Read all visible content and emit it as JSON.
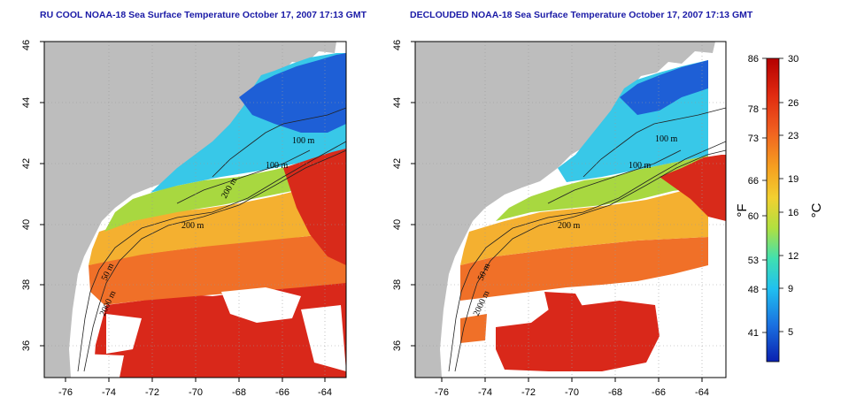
{
  "titles": {
    "left": "RU COOL NOAA-18 Sea Surface Temperature October 17, 2007 17:13 GMT",
    "right": "DECLOUDED NOAA-18 Sea Surface Temperature October 17, 2007 17:13 GMT"
  },
  "axes": {
    "x_ticks": [
      "-76",
      "-74",
      "-72",
      "-70",
      "-68",
      "-66",
      "-64"
    ],
    "y_ticks": [
      "36",
      "38",
      "40",
      "42",
      "44",
      "46"
    ]
  },
  "contours": [
    "100 m",
    "100 m",
    "200 m",
    "200 m",
    "50 m",
    "2000 m"
  ],
  "colorbar": {
    "unit_f": "°F",
    "unit_c": "°C",
    "f_ticks": [
      "86",
      "78",
      "73",
      "66",
      "60",
      "53",
      "48",
      "41"
    ],
    "c_ticks": [
      "30",
      "26",
      "23",
      "19",
      "16",
      "12",
      "9",
      "5"
    ],
    "gradient": [
      "#b40000",
      "#e02a10",
      "#f06020",
      "#f6a020",
      "#f2d030",
      "#b0e040",
      "#40e0b0",
      "#20c0f0",
      "#1a70e0",
      "#0a20b0"
    ]
  },
  "colors": {
    "land": "#bdbdbd",
    "title": "#1a1aa6"
  }
}
